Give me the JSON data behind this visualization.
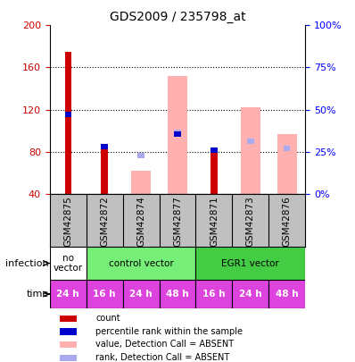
{
  "title": "GDS2009 / 235798_at",
  "samples": [
    "GSM42875",
    "GSM42872",
    "GSM42874",
    "GSM42877",
    "GSM42871",
    "GSM42873",
    "GSM42876"
  ],
  "left_ylim": [
    40,
    200
  ],
  "left_yticks": [
    40,
    80,
    120,
    160,
    200
  ],
  "right_ylim": [
    0,
    100
  ],
  "right_yticks": [
    0,
    25,
    50,
    75,
    100
  ],
  "right_yticklabels": [
    "0%",
    "25%",
    "50%",
    "75%",
    "100%"
  ],
  "count_values": [
    175,
    86,
    null,
    null,
    79,
    null,
    null
  ],
  "rank_values_left": [
    115,
    85,
    null,
    97,
    81,
    null,
    null
  ],
  "absent_value_bars": [
    null,
    null,
    62,
    152,
    null,
    122,
    97
  ],
  "absent_rank_left": [
    null,
    null,
    76,
    98,
    null,
    90,
    83
  ],
  "count_color": "#cc0000",
  "rank_color": "#0000cc",
  "absent_value_color": "#ffb0b0",
  "absent_rank_color": "#aaaaee",
  "infection_groups": [
    {
      "label": "no\nvector",
      "span": [
        0,
        1
      ],
      "color": "#ffffff"
    },
    {
      "label": "control vector",
      "span": [
        1,
        4
      ],
      "color": "#77ee77"
    },
    {
      "label": "EGR1 vector",
      "span": [
        4,
        7
      ],
      "color": "#44cc44"
    }
  ],
  "time_labels": [
    "24 h",
    "16 h",
    "24 h",
    "48 h",
    "16 h",
    "24 h",
    "48 h"
  ],
  "time_color": "#dd44dd",
  "bg_color": "#ffffff",
  "sample_bg_color": "#c0c0c0",
  "legend_items": [
    {
      "label": "count",
      "color": "#cc0000"
    },
    {
      "label": "percentile rank within the sample",
      "color": "#0000cc"
    },
    {
      "label": "value, Detection Call = ABSENT",
      "color": "#ffb0b0"
    },
    {
      "label": "rank, Detection Call = ABSENT",
      "color": "#aaaaee"
    }
  ]
}
